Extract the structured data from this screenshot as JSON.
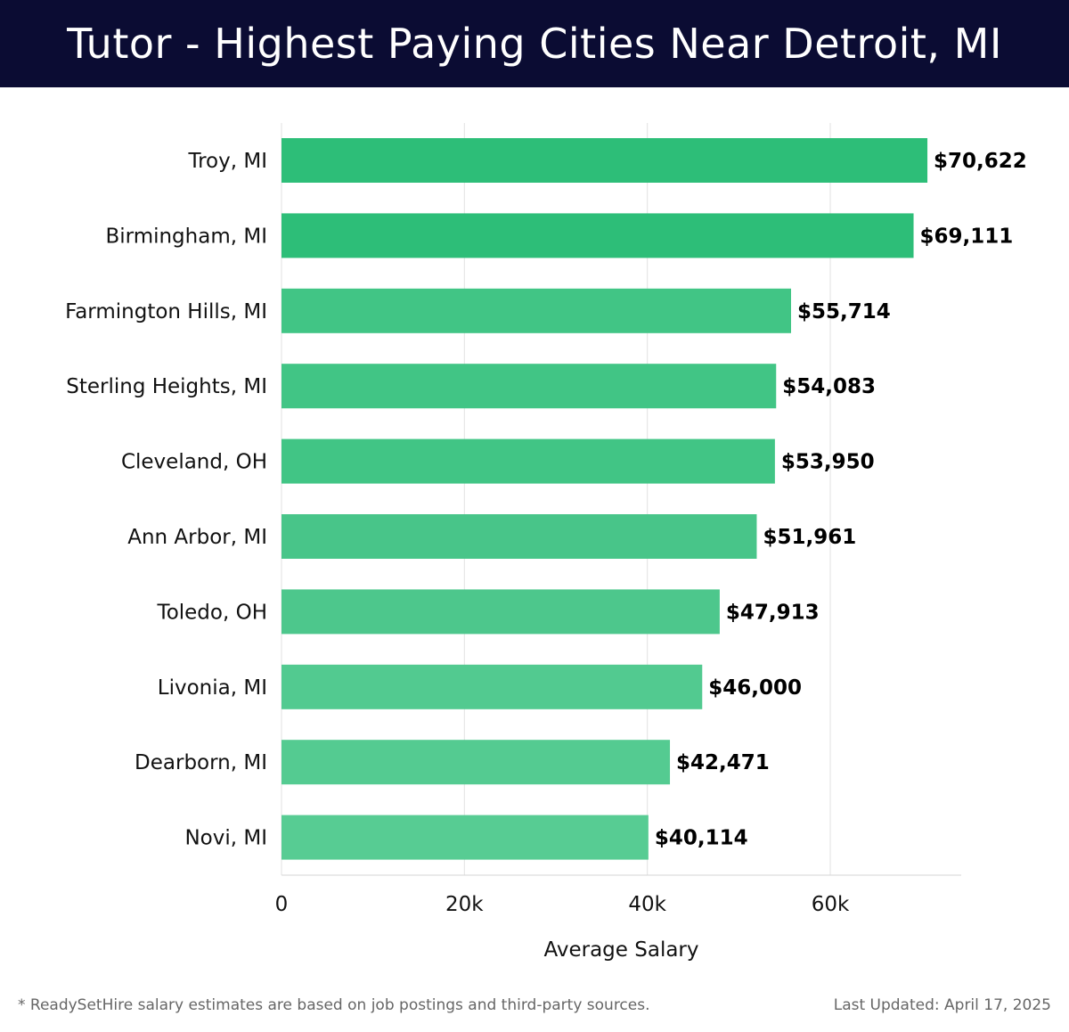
{
  "header": {
    "title": "Tutor - Highest Paying Cities Near Detroit, MI"
  },
  "chart_data": {
    "type": "bar",
    "orientation": "horizontal",
    "categories": [
      "Troy, MI",
      "Birmingham, MI",
      "Farmington Hills, MI",
      "Sterling Heights, MI",
      "Cleveland, OH",
      "Ann Arbor, MI",
      "Toledo, OH",
      "Livonia, MI",
      "Dearborn, MI",
      "Novi, MI"
    ],
    "values": [
      70622,
      69111,
      55714,
      54083,
      53950,
      51961,
      47913,
      46000,
      42471,
      40114
    ],
    "value_labels": [
      "$70,622",
      "$69,111",
      "$55,714",
      "$54,083",
      "$53,950",
      "$51,961",
      "$47,913",
      "$46,000",
      "$42,471",
      "$40,114"
    ],
    "xlabel": "Average Salary",
    "ylabel": "",
    "xlim": [
      0,
      74000
    ],
    "x_ticks": [
      0,
      20000,
      40000,
      60000
    ],
    "x_tick_labels": [
      "0",
      "20k",
      "40k",
      "60k"
    ],
    "grid": "vertical",
    "bar_colors": [
      "#2dbe78",
      "#2dbe78",
      "#41c585",
      "#41c585",
      "#41c585",
      "#48c589",
      "#4dc78c",
      "#52ca90",
      "#54cb91",
      "#57cc93"
    ]
  },
  "footer": {
    "note": "* ReadySetHire salary estimates are based on job postings and third-party sources.",
    "updated": "Last Updated: April 17, 2025"
  }
}
